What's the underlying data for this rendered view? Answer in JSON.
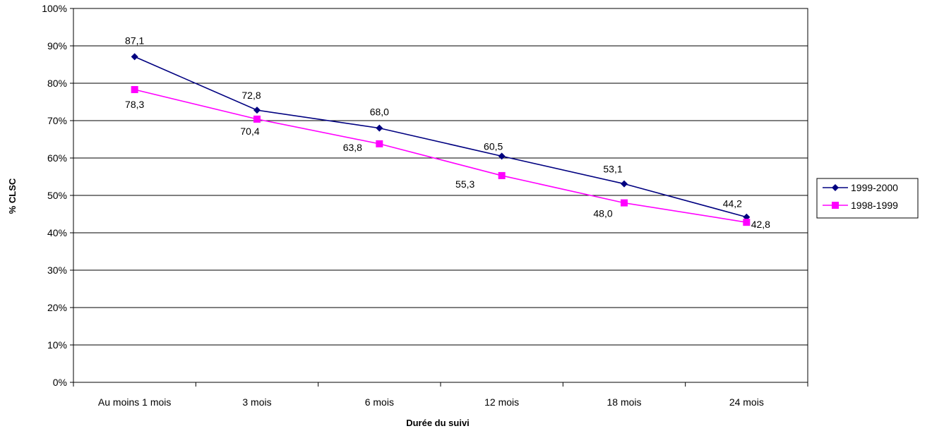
{
  "chart_data": {
    "type": "line",
    "title": "",
    "xlabel": "Durée du suivi",
    "ylabel": "% CLSC",
    "categories": [
      "Au moins 1 mois",
      "3 mois",
      "6 mois",
      "12 mois",
      "18 mois",
      "24 mois"
    ],
    "ylim": [
      0,
      100
    ],
    "yticks": [
      "0%",
      "10%",
      "20%",
      "30%",
      "40%",
      "50%",
      "60%",
      "70%",
      "80%",
      "90%",
      "100%"
    ],
    "grid": true,
    "legend_position": "right",
    "series": [
      {
        "name": "1999-2000",
        "color": "#000080",
        "marker": "diamond",
        "values": [
          87.1,
          72.8,
          68.0,
          60.5,
          53.1,
          44.2
        ],
        "labels": [
          "87,1",
          "72,8",
          "68,0",
          "60,5",
          "53,1",
          "44,2"
        ]
      },
      {
        "name": "1998-1999",
        "color": "#ff00ff",
        "marker": "square",
        "values": [
          78.3,
          70.4,
          63.8,
          55.3,
          48.0,
          42.8
        ],
        "labels": [
          "78,3",
          "70,4",
          "63,8",
          "55,3",
          "48,0",
          "42,8"
        ]
      }
    ]
  }
}
